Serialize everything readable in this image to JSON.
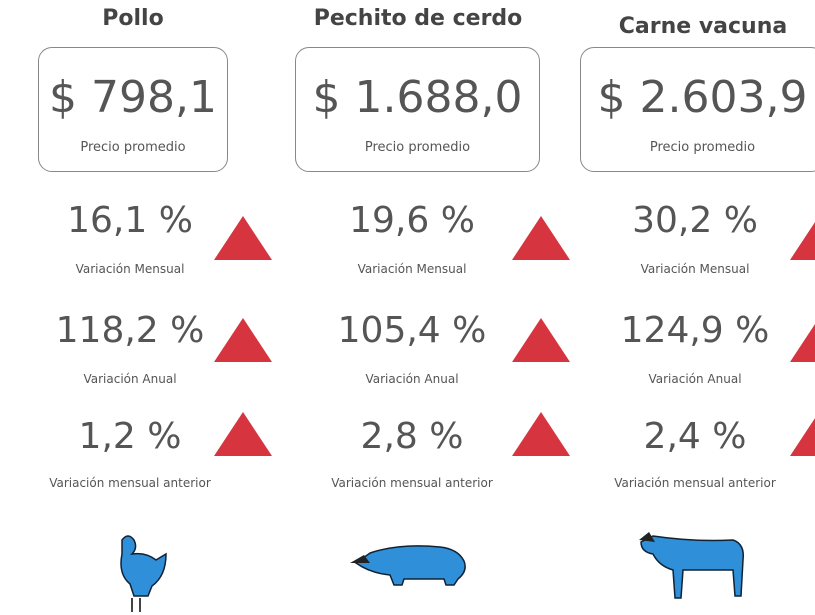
{
  "columns": [
    {
      "title": "Pollo",
      "price": "$ 798,1",
      "price_label": "Precio promedio",
      "metrics": [
        {
          "value": "16,1 %",
          "label": "Variación Mensual"
        },
        {
          "value": "118,2 %",
          "label": "Variación Anual"
        },
        {
          "value": "1,2 %",
          "label": "Variación mensual anterior"
        }
      ]
    },
    {
      "title": "Pechito de cerdo",
      "price": "$ 1.688,0",
      "price_label": "Precio promedio",
      "metrics": [
        {
          "value": "19,6 %",
          "label": "Variación Mensual"
        },
        {
          "value": "105,4 %",
          "label": "Variación Anual"
        },
        {
          "value": "2,8 %",
          "label": "Variación mensual anterior"
        }
      ]
    },
    {
      "title": "Carne vacuna",
      "price": "$ 2.603,9",
      "price_label": "Precio promedio",
      "metrics": [
        {
          "value": "30,2 %",
          "label": "Variación Mensual"
        },
        {
          "value": "124,9 %",
          "label": "Variación Anual"
        },
        {
          "value": "2,4 %",
          "label": "Variación mensual anterior"
        }
      ]
    }
  ]
}
